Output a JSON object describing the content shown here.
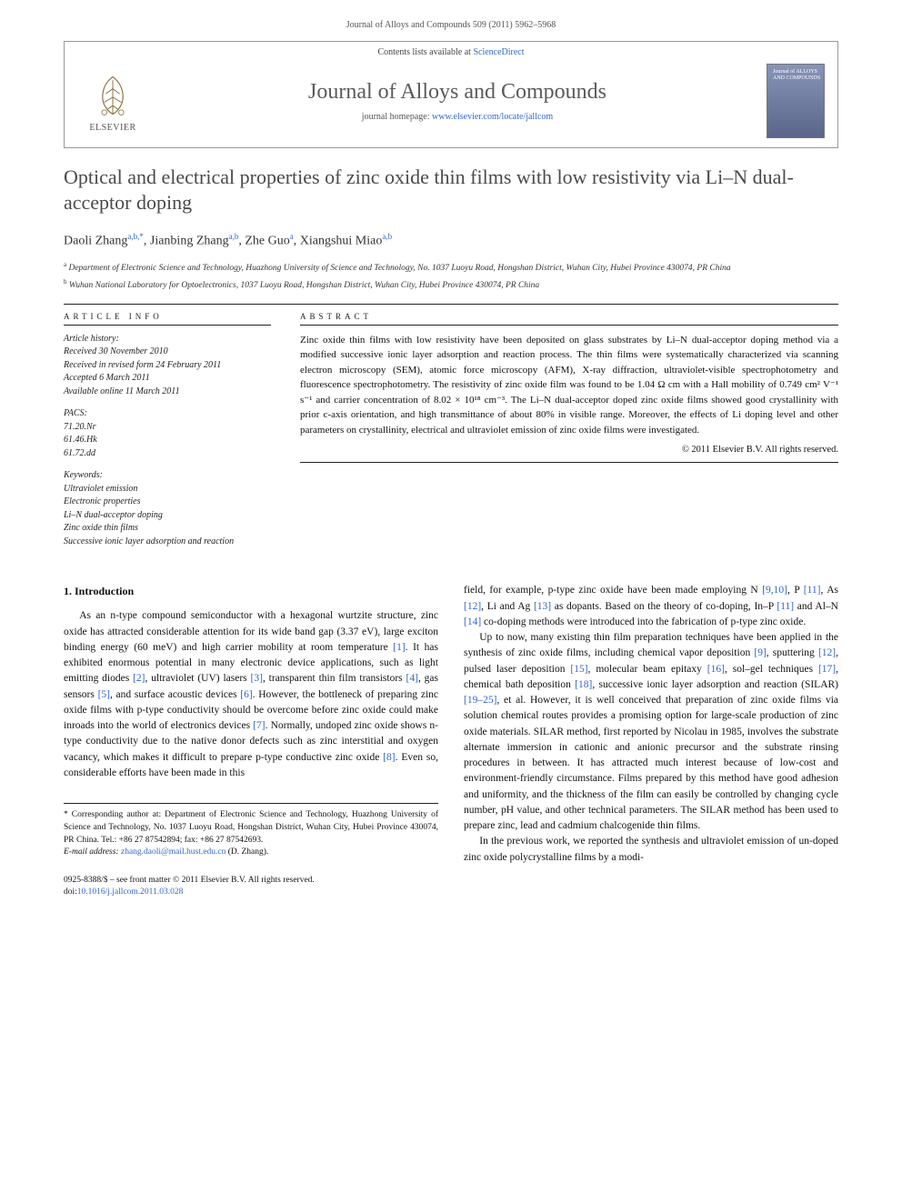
{
  "header": {
    "citation": "Journal of Alloys and Compounds 509 (2011) 5962–5968"
  },
  "banner": {
    "contents_line_pre": "Contents lists available at ",
    "contents_link": "ScienceDirect",
    "brand": "ELSEVIER",
    "journal_title": "Journal of Alloys and Compounds",
    "homepage_pre": "journal homepage: ",
    "homepage_url": "www.elsevier.com/locate/jallcom",
    "cover_text": "Journal of\nALLOYS\nAND COMPOUNDS"
  },
  "title": "Optical and electrical properties of zinc oxide thin films with low resistivity via Li–N dual-acceptor doping",
  "authors_html": "Daoli Zhang<span class=\"sup\">a,b,*</span>, Jianbing Zhang<span class=\"sup\">a,b</span>, Zhe Guo<span class=\"sup\">a</span>, Xiangshui Miao<span class=\"sup\">a,b</span>",
  "affiliations": {
    "a": "Department of Electronic Science and Technology, Huazhong University of Science and Technology, No. 1037 Luoyu Road, Hongshan District, Wuhan City, Hubei Province 430074, PR China",
    "b": "Wuhan National Laboratory for Optoelectronics, 1037 Luoyu Road, Hongshan District, Wuhan City, Hubei Province 430074, PR China"
  },
  "meta": {
    "info_head": "ARTICLE INFO",
    "abs_head": "ABSTRACT",
    "history_label": "Article history:",
    "history": [
      "Received 30 November 2010",
      "Received in revised form 24 February 2011",
      "Accepted 6 March 2011",
      "Available online 11 March 2011"
    ],
    "pacs_label": "PACS:",
    "pacs": [
      "71.20.Nr",
      "61.46.Hk",
      "61.72.dd"
    ],
    "keywords_label": "Keywords:",
    "keywords": [
      "Ultraviolet emission",
      "Electronic properties",
      "Li–N dual-acceptor doping",
      "Zinc oxide thin films",
      "Successive ionic layer adsorption and reaction"
    ]
  },
  "abstract": "Zinc oxide thin films with low resistivity have been deposited on glass substrates by Li–N dual-acceptor doping method via a modified successive ionic layer adsorption and reaction process. The thin films were systematically characterized via scanning electron microscopy (SEM), atomic force microscopy (AFM), X-ray diffraction, ultraviolet-visible spectrophotometry and fluorescence spectrophotometry. The resistivity of zinc oxide film was found to be 1.04 Ω cm with a Hall mobility of 0.749 cm² V⁻¹ s⁻¹ and carrier concentration of 8.02 × 10¹⁸ cm⁻³. The Li–N dual-acceptor doped zinc oxide films showed good crystallinity with prior c-axis orientation, and high transmittance of about 80% in visible range. Moreover, the effects of Li doping level and other parameters on crystallinity, electrical and ultraviolet emission of zinc oxide films were investigated.",
  "copyright": "© 2011 Elsevier B.V. All rights reserved.",
  "section1_head": "1. Introduction",
  "body_left": "As an n-type compound semiconductor with a hexagonal wurtzite structure, zinc oxide has attracted considerable attention for its wide band gap (3.37 eV), large exciton binding energy (60 meV) and high carrier mobility at room temperature <a href=\"#\">[1]</a>. It has exhibited enormous potential in many electronic device applications, such as light emitting diodes <a href=\"#\">[2]</a>, ultraviolet (UV) lasers <a href=\"#\">[3]</a>, transparent thin film transistors <a href=\"#\">[4]</a>, gas sensors <a href=\"#\">[5]</a>, and surface acoustic devices <a href=\"#\">[6]</a>. However, the bottleneck of preparing zinc oxide films with p-type conductivity should be overcome before zinc oxide could make inroads into the world of electronics devices <a href=\"#\">[7]</a>. Normally, undoped zinc oxide shows n-type conductivity due to the native donor defects such as zinc interstitial and oxygen vacancy, which makes it difficult to prepare p-type conductive zinc oxide <a href=\"#\">[8]</a>. Even so, considerable efforts have been made in this",
  "body_right_p1": "field, for example, p-type zinc oxide have been made employing N <a href=\"#\">[9,10]</a>, P <a href=\"#\">[11]</a>, As <a href=\"#\">[12]</a>, Li and Ag <a href=\"#\">[13]</a> as dopants. Based on the theory of co-doping, In–P <a href=\"#\">[11]</a> and Al–N <a href=\"#\">[14]</a> co-doping methods were introduced into the fabrication of p-type zinc oxide.",
  "body_right_p2": "Up to now, many existing thin film preparation techniques have been applied in the synthesis of zinc oxide films, including chemical vapor deposition <a href=\"#\">[9]</a>, sputtering <a href=\"#\">[12]</a>, pulsed laser deposition <a href=\"#\">[15]</a>, molecular beam epitaxy <a href=\"#\">[16]</a>, sol–gel techniques <a href=\"#\">[17]</a>, chemical bath deposition <a href=\"#\">[18]</a>, successive ionic layer adsorption and reaction (SILAR) <a href=\"#\">[19–25]</a>, et al. However, it is well conceived that preparation of zinc oxide films via solution chemical routes provides a promising option for large-scale production of zinc oxide materials. SILAR method, first reported by Nicolau in 1985, involves the substrate alternate immersion in cationic and anionic precursor and the substrate rinsing procedures in between. It has attracted much interest because of low-cost and environment-friendly circumstance. Films prepared by this method have good adhesion and uniformity, and the thickness of the film can easily be controlled by changing cycle number, pH value, and other technical parameters. The SILAR method has been used to prepare zinc, lead and cadmium chalcogenide thin films.",
  "body_right_p3": "In the previous work, we reported the synthesis and ultraviolet emission of un-doped zinc oxide polycrystalline films by a modi-",
  "footnotes": {
    "corr": "* Corresponding author at: Department of Electronic Science and Technology, Huazhong University of Science and Technology, No. 1037 Luoyu Road, Hongshan District, Wuhan City, Hubei Province 430074, PR China. Tel.: +86 27 87542894; fax: +86 27 87542693.",
    "email_label": "E-mail address: ",
    "email": "zhang.daoli@mail.hust.edu.cn",
    "email_tail": " (D. Zhang)."
  },
  "doi": {
    "line1": "0925-8388/$ – see front matter © 2011 Elsevier B.V. All rights reserved.",
    "line2_pre": "doi:",
    "line2_link": "10.1016/j.jallcom.2011.03.028"
  }
}
